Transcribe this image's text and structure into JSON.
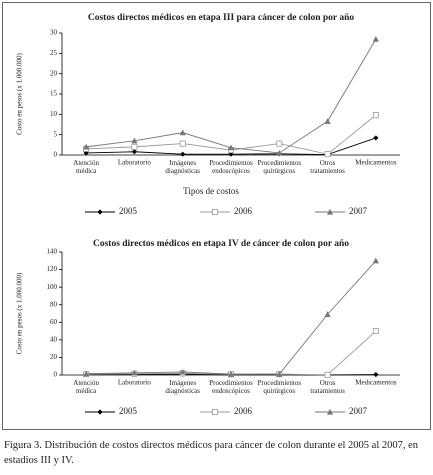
{
  "chart_data": [
    {
      "type": "line",
      "title": "Costos directos médicos en etapa III para cáncer de colon por año",
      "ylabel": "Costo en pesos (x 1.000.000)",
      "xlabel": "Tipos de costos",
      "categories": [
        "Atención médica",
        "Laboratorio",
        "Imágenes diagnósticas",
        "Procedimientos endoscópicos",
        "Procedimientos quirúrgicos",
        "Otros tratamientos",
        "Medicamentos"
      ],
      "ylim": [
        0,
        30
      ],
      "yticks": [
        0,
        5,
        10,
        15,
        20,
        25,
        30
      ],
      "grid": false,
      "series": [
        {
          "name": "2005",
          "color": "#000000",
          "marker": "diamond",
          "values": [
            0.5,
            0.8,
            0.2,
            0.2,
            0.3,
            0.1,
            4.2
          ]
        },
        {
          "name": "2006",
          "color": "#999999",
          "marker": "square",
          "values": [
            1.5,
            2.0,
            2.8,
            1.2,
            2.8,
            0.2,
            9.8
          ]
        },
        {
          "name": "2007",
          "color": "#777777",
          "marker": "triangle",
          "values": [
            2.0,
            3.5,
            5.5,
            1.8,
            0.5,
            8.3,
            28.5
          ]
        }
      ]
    },
    {
      "type": "line",
      "title": "Costos directos médicos en etapa IV de cáncer de colon por año",
      "ylabel": "Costo en pesos (x 1.000.000)",
      "categories": [
        "Atención médica",
        "Laboratorio",
        "Imágenes diagnósticas",
        "Procedimientos endoscópicos",
        "Procedimientos quirúrgicos",
        "Otros tratamientos",
        "Medicamentos"
      ],
      "ylim": [
        0,
        140
      ],
      "yticks": [
        0,
        20,
        40,
        60,
        80,
        100,
        120,
        140
      ],
      "grid": false,
      "series": [
        {
          "name": "2005",
          "color": "#000000",
          "marker": "diamond",
          "values": [
            0.5,
            0.8,
            1,
            0.2,
            0.3,
            0.1,
            0.5
          ]
        },
        {
          "name": "2006",
          "color": "#999999",
          "marker": "square",
          "values": [
            1,
            1.5,
            2,
            0.8,
            1,
            0.2,
            50
          ]
        },
        {
          "name": "2007",
          "color": "#777777",
          "marker": "triangle",
          "values": [
            1.5,
            2.5,
            3.5,
            1,
            1,
            69,
            130
          ]
        }
      ]
    }
  ],
  "caption": "Figura 3. Distribución de costos directos médicos para cáncer de colon durante el 2005 al 2007, en estadios III y IV."
}
